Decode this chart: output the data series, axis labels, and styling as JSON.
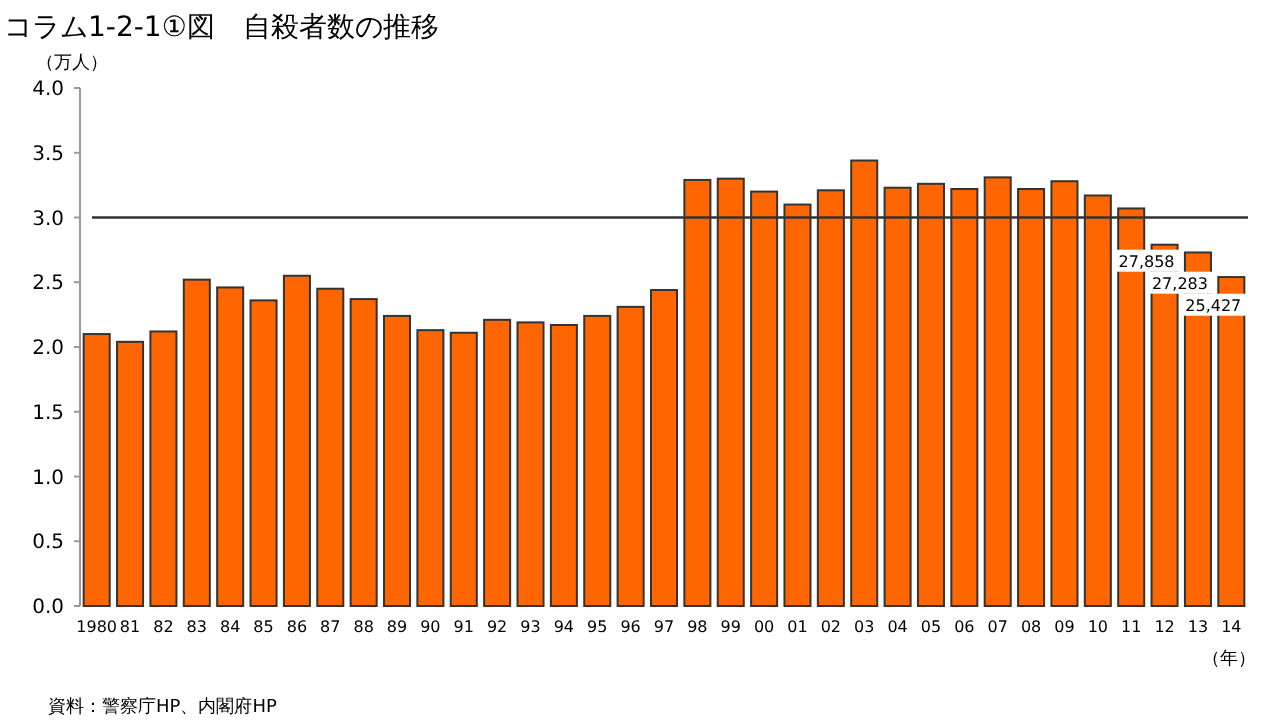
{
  "chart_data": {
    "type": "bar",
    "title": "コラム1-2-1①図　自殺者数の推移",
    "ylabel": "（万人）",
    "xlabel": "（年）",
    "categories": [
      "1980",
      "81",
      "82",
      "83",
      "84",
      "85",
      "86",
      "87",
      "88",
      "89",
      "90",
      "91",
      "92",
      "93",
      "94",
      "95",
      "96",
      "97",
      "98",
      "99",
      "00",
      "01",
      "02",
      "03",
      "04",
      "05",
      "06",
      "07",
      "08",
      "09",
      "10",
      "11",
      "12",
      "13",
      "14"
    ],
    "values": [
      2.1,
      2.04,
      2.12,
      2.52,
      2.46,
      2.36,
      2.55,
      2.45,
      2.37,
      2.24,
      2.13,
      2.11,
      2.21,
      2.19,
      2.17,
      2.24,
      2.31,
      2.44,
      3.29,
      3.3,
      3.2,
      3.1,
      3.21,
      3.44,
      3.23,
      3.26,
      3.22,
      3.31,
      3.22,
      3.28,
      3.17,
      3.07,
      2.79,
      2.73,
      2.54
    ],
    "color": "#ff6600",
    "ylim": [
      0,
      4
    ],
    "yticks": [
      {
        "value": 0,
        "label": "0.0"
      },
      0.5,
      {
        "value": 1,
        "label": "1.0"
      },
      1.5,
      {
        "value": 2,
        "label": "2.0"
      },
      2.5,
      {
        "value": 3,
        "label": "3.0"
      },
      3.5,
      {
        "value": 4,
        "label": "4.0"
      }
    ],
    "ref_lines": [
      {
        "axis": "y",
        "value": 3,
        "color": "#333333"
      }
    ],
    "annotations": [
      "資料：警察庁HP、内閣府HP",
      {
        "text": "27,858",
        "x": "12",
        "y": 2.79
      },
      {
        "text": "27,283",
        "x": "13",
        "y": 2.73
      },
      {
        "text": "25,427",
        "x": "14",
        "y": 2.54
      }
    ],
    "grid": false
  }
}
